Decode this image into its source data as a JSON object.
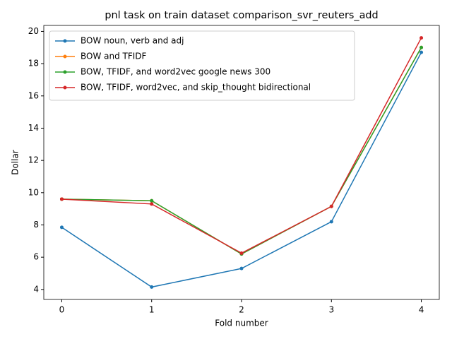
{
  "chart_data": {
    "type": "line",
    "title": "pnl task on train dataset comparison_svr_reuters_add",
    "x_label": "Fold number",
    "y_label": "Dollar",
    "x": [
      0,
      1,
      2,
      3,
      4
    ],
    "series": [
      {
        "name": "BOW noun, verb and adj",
        "color": "#1f77b4",
        "values": [
          7.85,
          4.15,
          5.3,
          8.2,
          18.7
        ]
      },
      {
        "name": "BOW and TFIDF",
        "color": "#ff7f0e",
        "values": [
          9.6,
          9.5,
          6.2,
          9.15,
          19.0
        ]
      },
      {
        "name": "BOW, TFIDF, and word2vec google news 300",
        "color": "#2ca02c",
        "values": [
          9.6,
          9.5,
          6.2,
          9.15,
          19.0
        ]
      },
      {
        "name": "BOW, TFIDF, word2vec, and skip_thought bidirectional",
        "color": "#d62728",
        "values": [
          9.6,
          9.3,
          6.25,
          9.15,
          19.6
        ]
      }
    ],
    "xlim": [
      -0.2,
      4.2
    ],
    "xticks": [
      0,
      1,
      2,
      3,
      4
    ],
    "ylim": [
      3.38,
      20.37
    ],
    "yticks": [
      4,
      6,
      8,
      10,
      12,
      14,
      16,
      18,
      20
    ],
    "legend": "upper left"
  }
}
